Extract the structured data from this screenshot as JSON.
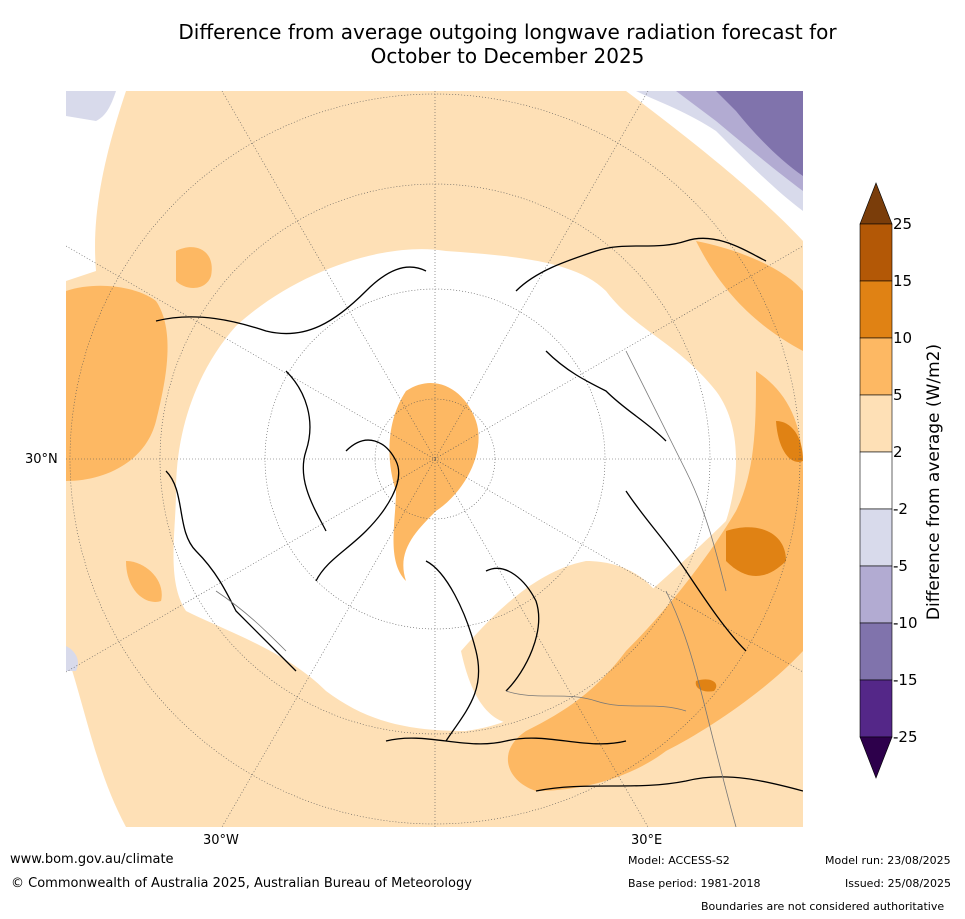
{
  "title_line1": "Difference from average outgoing longwave radiation forecast for",
  "title_line2": "October to December 2025",
  "map": {
    "lat_label_left": "30°N",
    "lon_label_left": "30°W",
    "lon_label_right": "30°E"
  },
  "colorbar": {
    "label": "Difference from average (W/m2)",
    "ticks": [
      "25",
      "15",
      "10",
      "5",
      "2",
      "-2",
      "-5",
      "-10",
      "-15",
      "-25"
    ],
    "colors": {
      "over_25": "#7a3d0a",
      "15_to_25": "#b35806",
      "10_to_15": "#e08214",
      "5_to_10": "#fdb863",
      "2_to_5": "#fee0b6",
      "-2_to_2": "#ffffff",
      "-5_to_-2": "#d8daeb",
      "-10_to_-5": "#b2abd2",
      "-15_to_-10": "#8073ac",
      "-25_to_-15": "#542788",
      "under_-25": "#2d004b"
    }
  },
  "footer": {
    "website": "www.bom.gov.au/climate",
    "copyright": "© Commonwealth of Australia 2025, Australian Bureau of Meteorology",
    "model": "Model: ACCESS-S2",
    "base_period": "Base period: 1981-2018",
    "model_run": "Model run: 23/08/2025",
    "issued": "Issued: 25/08/2025",
    "disclaimer": "Boundaries are not considered authoritative"
  }
}
